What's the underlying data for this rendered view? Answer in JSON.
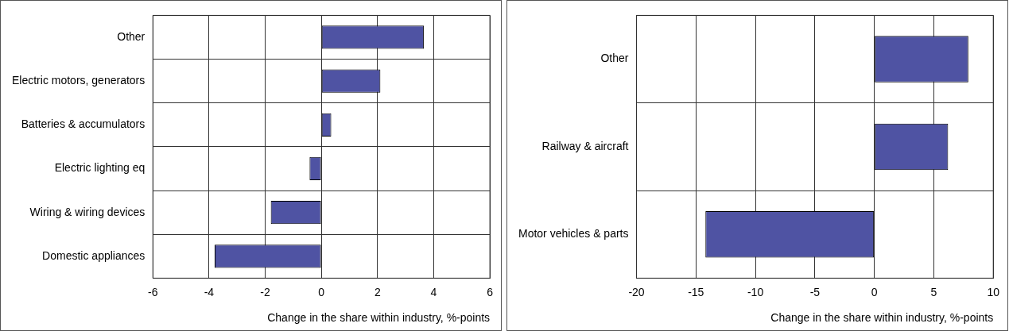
{
  "chart_data": [
    {
      "type": "bar",
      "orientation": "horizontal",
      "categories": [
        "Other",
        "Electric motors, generators",
        "Batteries & accumulators",
        "Electric lighting eq",
        "Wiring & wiring devices",
        "Domestic appliances"
      ],
      "values": [
        3.65,
        2.1,
        0.35,
        -0.42,
        -1.8,
        -3.8
      ],
      "color": "#4f53a3",
      "xlim": [
        -6,
        6
      ],
      "xticks": [
        -6,
        -4,
        -2,
        0,
        2,
        4,
        6
      ],
      "xlabel": "Change in the share within industry, %-points",
      "grid": true
    },
    {
      "type": "bar",
      "orientation": "horizontal",
      "categories": [
        "Other",
        "Railway & aircraft",
        "Motor vehicles & parts"
      ],
      "values": [
        7.9,
        6.2,
        -14.2
      ],
      "color": "#4f53a3",
      "xlim": [
        -20,
        10
      ],
      "xticks": [
        -20,
        -15,
        -10,
        -5,
        0,
        5,
        10
      ],
      "xlabel": "Change in the share within industry, %-points",
      "grid": true
    }
  ]
}
